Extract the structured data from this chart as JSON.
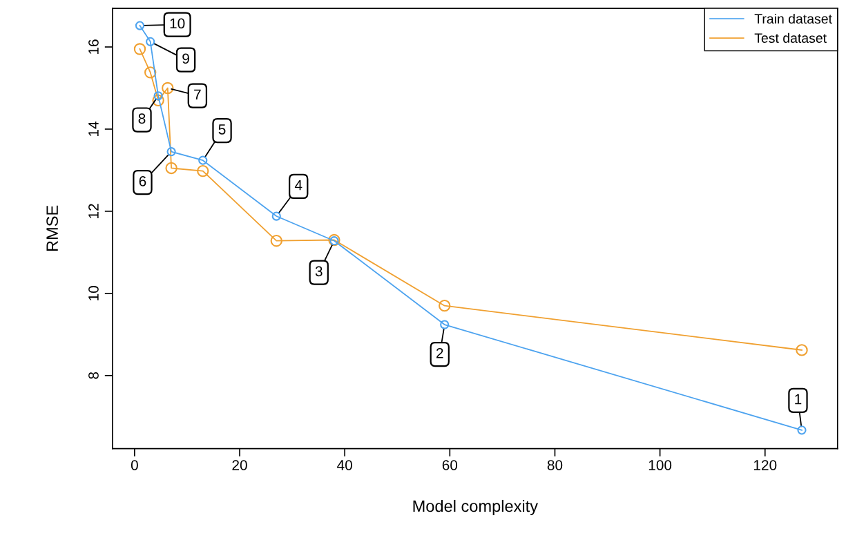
{
  "chart_data": {
    "type": "line",
    "xlabel": "Model complexity",
    "ylabel": "RMSE",
    "xlim": [
      -4.2,
      133.8
    ],
    "ylim": [
      6.22,
      16.94
    ],
    "xticks": [
      0,
      20,
      40,
      60,
      80,
      100,
      120
    ],
    "yticks": [
      8,
      10,
      12,
      14,
      16
    ],
    "grid": false,
    "legend": "top right",
    "marker": "circle",
    "line_style": "solid",
    "series": [
      {
        "name": "Train dataset",
        "color": "#4da3ef",
        "x": [
          1,
          3,
          4.5,
          7,
          13,
          27,
          38,
          59,
          127
        ],
        "values": [
          16.52,
          16.13,
          14.81,
          13.45,
          13.24,
          11.88,
          11.28,
          9.24,
          6.67
        ]
      },
      {
        "name": "Test dataset",
        "color": "#f0a030",
        "x": [
          1,
          3,
          4.5,
          6.3,
          7,
          13,
          27,
          38,
          59,
          127
        ],
        "values": [
          15.95,
          15.38,
          14.7,
          15.0,
          13.05,
          12.98,
          11.28,
          11.3,
          9.7,
          8.62
        ]
      }
    ],
    "annotations": [
      {
        "text": "1",
        "x": 127,
        "y": 6.67
      },
      {
        "text": "2",
        "x": 59,
        "y": 9.24
      },
      {
        "text": "3",
        "x": 38,
        "y": 11.28
      },
      {
        "text": "4",
        "x": 27,
        "y": 11.88
      },
      {
        "text": "5",
        "x": 13,
        "y": 13.24
      },
      {
        "text": "6",
        "x": 7,
        "y": 13.45
      },
      {
        "text": "7",
        "x": 6.3,
        "y": 15.0
      },
      {
        "text": "8",
        "x": 4.5,
        "y": 14.81
      },
      {
        "text": "9",
        "x": 3,
        "y": 16.13
      },
      {
        "text": "10",
        "x": 1,
        "y": 16.52
      }
    ]
  }
}
